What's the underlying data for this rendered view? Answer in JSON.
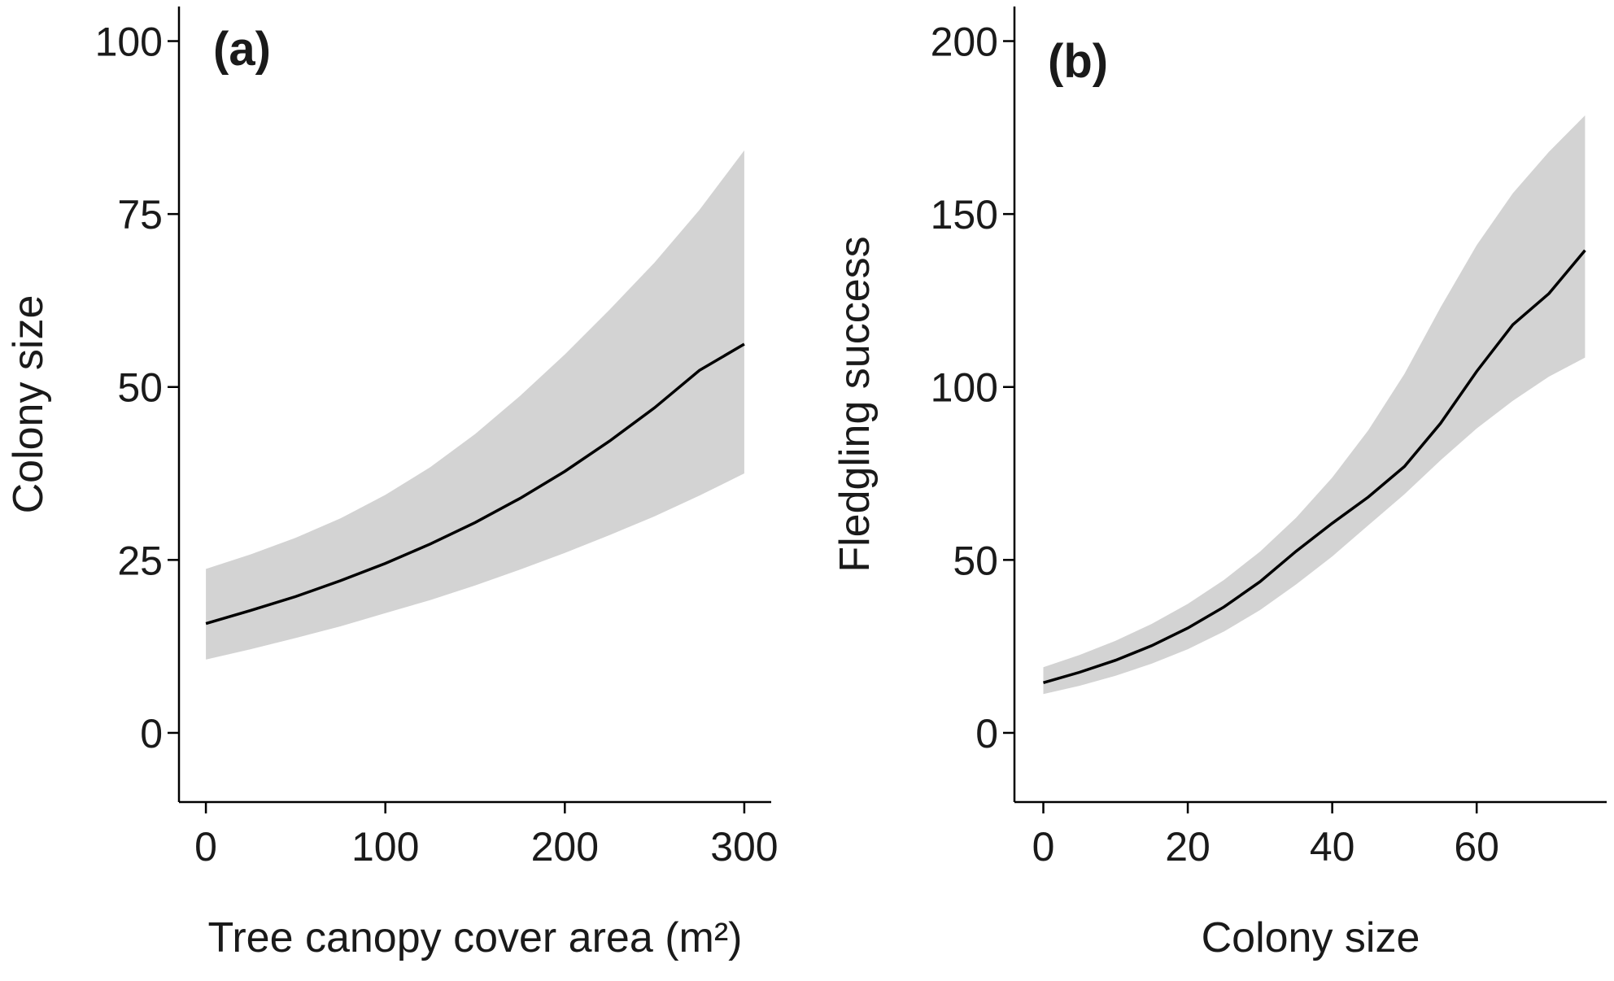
{
  "chart_data": [
    {
      "type": "line",
      "panel_label": "(a)",
      "xlabel": "Tree canopy cover area (m²)",
      "ylabel": "Colony size",
      "xlim": [
        -15,
        315
      ],
      "ylim": [
        -10,
        105
      ],
      "xticks": [
        0,
        100,
        200,
        300
      ],
      "yticks": [
        0,
        25,
        50,
        75,
        100
      ],
      "grid": false,
      "series": [
        {
          "x": [
            0,
            25,
            50,
            75,
            100,
            125,
            150,
            175,
            200,
            225,
            250,
            275,
            300
          ],
          "y": [
            15.8,
            17.7,
            19.7,
            22.0,
            24.5,
            27.3,
            30.4,
            33.9,
            37.8,
            42.2,
            47.0,
            52.4,
            56.2
          ],
          "lower": [
            10.6,
            12.1,
            13.7,
            15.4,
            17.3,
            19.2,
            21.3,
            23.6,
            26.0,
            28.6,
            31.3,
            34.3,
            37.5
          ],
          "upper": [
            23.7,
            25.8,
            28.2,
            31.0,
            34.4,
            38.4,
            43.2,
            48.7,
            54.7,
            61.2,
            68.0,
            75.6,
            84.2
          ]
        }
      ]
    },
    {
      "type": "line",
      "panel_label": "(b)",
      "xlabel": "Colony size",
      "ylabel": "Fledgling success",
      "xlim": [
        -4,
        78
      ],
      "ylim": [
        -20,
        210
      ],
      "xticks": [
        0,
        20,
        40,
        60
      ],
      "yticks": [
        0,
        50,
        100,
        150,
        200
      ],
      "grid": false,
      "series": [
        {
          "x": [
            0,
            5,
            10,
            15,
            20,
            25,
            30,
            35,
            40,
            45,
            50,
            55,
            60,
            65,
            70,
            75
          ],
          "y": [
            14.5,
            17.5,
            21.0,
            25.2,
            30.3,
            36.4,
            43.7,
            52.5,
            60.6,
            68.2,
            77.0,
            89.5,
            104.5,
            118.0,
            127.0,
            139.5
          ],
          "lower": [
            11.2,
            13.6,
            16.5,
            20.0,
            24.2,
            29.3,
            35.5,
            42.9,
            51.0,
            60.0,
            69.0,
            78.8,
            88.0,
            96.0,
            103.0,
            108.5
          ],
          "upper": [
            19.0,
            22.5,
            26.6,
            31.5,
            37.3,
            44.2,
            52.4,
            62.2,
            73.8,
            87.5,
            103.8,
            123.0,
            141.0,
            156.0,
            168.0,
            178.5
          ]
        }
      ]
    }
  ]
}
